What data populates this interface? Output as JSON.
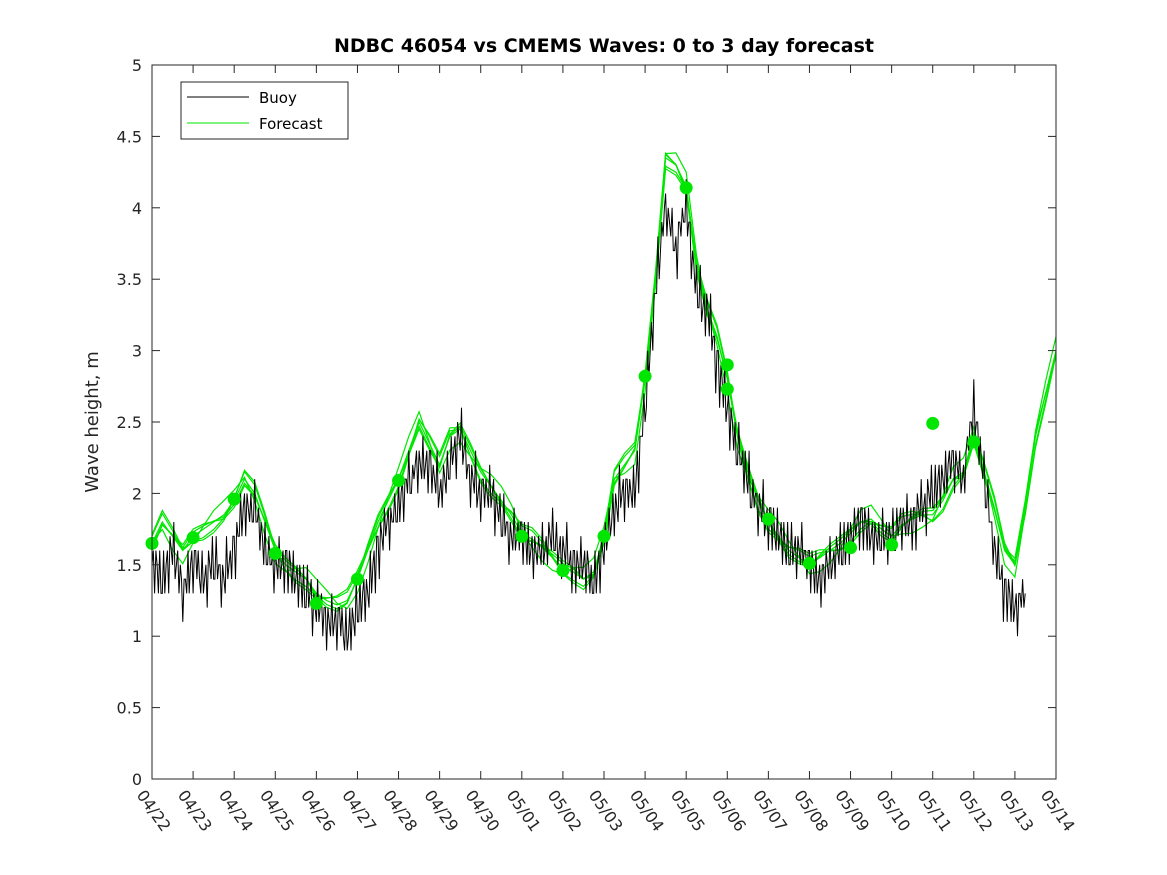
{
  "chart_data": {
    "type": "line",
    "title": "NDBC 46054 vs CMEMS Waves: 0 to 3 day forecast",
    "xlabel": "",
    "ylabel": "Wave height, m",
    "xlim": [
      "04/22",
      "05/14"
    ],
    "ylim": [
      0,
      5
    ],
    "y_ticks": [
      "0",
      "0.5",
      "1",
      "1.5",
      "2",
      "2.5",
      "3",
      "3.5",
      "4",
      "4.5",
      "5"
    ],
    "x_ticks": [
      "04/22",
      "04/23",
      "04/24",
      "04/25",
      "04/26",
      "04/27",
      "04/28",
      "04/29",
      "04/30",
      "05/01",
      "05/02",
      "05/03",
      "05/04",
      "05/05",
      "05/06",
      "05/07",
      "05/08",
      "05/09",
      "05/10",
      "05/11",
      "05/12",
      "05/13",
      "05/14"
    ],
    "grid": false,
    "legend_position": "top-left",
    "colors": {
      "buoy": "#000000",
      "forecast": "#00e600",
      "marker": "#00e600"
    },
    "series": [
      {
        "name": "Buoy",
        "x": [
          "04/22",
          "04/22 06h",
          "04/22 12h",
          "04/22 18h",
          "04/23",
          "04/23 06h",
          "04/23 12h",
          "04/23 18h",
          "04/24",
          "04/24 06h",
          "04/24 12h",
          "04/24 18h",
          "04/25",
          "04/25 06h",
          "04/25 12h",
          "04/25 18h",
          "04/26",
          "04/26 06h",
          "04/26 12h",
          "04/26 18h",
          "04/27",
          "04/27 06h",
          "04/27 12h",
          "04/27 18h",
          "04/28",
          "04/28 06h",
          "04/28 12h",
          "04/28 18h",
          "04/29",
          "04/29 06h",
          "04/29 12h",
          "04/29 18h",
          "04/30",
          "04/30 06h",
          "04/30 12h",
          "04/30 18h",
          "05/01",
          "05/01 06h",
          "05/01 12h",
          "05/01 18h",
          "05/02",
          "05/02 06h",
          "05/02 12h",
          "05/02 18h",
          "05/03",
          "05/03 06h",
          "05/03 12h",
          "05/03 18h",
          "05/04",
          "05/04 06h",
          "05/04 12h",
          "05/04 18h",
          "05/05",
          "05/05 06h",
          "05/05 12h",
          "05/05 18h",
          "05/06",
          "05/06 06h",
          "05/06 12h",
          "05/06 18h",
          "05/07",
          "05/07 06h",
          "05/07 12h",
          "05/07 18h",
          "05/08",
          "05/08 06h",
          "05/08 12h",
          "05/08 18h",
          "05/09",
          "05/09 06h",
          "05/09 12h",
          "05/09 18h",
          "05/10",
          "05/10 06h",
          "05/10 12h",
          "05/10 18h",
          "05/11",
          "05/11 06h",
          "05/11 12h",
          "05/11 18h",
          "05/12",
          "05/12 06h",
          "05/12 12h",
          "05/12 18h",
          "05/13",
          "05/13 06h"
        ],
        "values": [
          1.5,
          1.4,
          1.6,
          1.3,
          1.5,
          1.4,
          1.5,
          1.4,
          1.6,
          1.9,
          1.9,
          1.6,
          1.5,
          1.5,
          1.4,
          1.3,
          1.2,
          1.1,
          1.1,
          1.0,
          1.2,
          1.3,
          1.6,
          1.8,
          1.9,
          2.1,
          2.2,
          2.2,
          2.0,
          2.2,
          2.4,
          2.1,
          2.0,
          2.0,
          1.8,
          1.7,
          1.7,
          1.6,
          1.6,
          1.7,
          1.6,
          1.5,
          1.5,
          1.4,
          1.6,
          1.9,
          2.0,
          2.0,
          2.6,
          3.4,
          4.0,
          3.7,
          4.0,
          3.4,
          3.3,
          2.9,
          2.6,
          2.3,
          2.1,
          1.9,
          1.8,
          1.7,
          1.6,
          1.6,
          1.5,
          1.4,
          1.5,
          1.6,
          1.7,
          1.8,
          1.7,
          1.7,
          1.7,
          1.8,
          1.8,
          1.9,
          2.0,
          2.1,
          2.2,
          2.1,
          2.6,
          2.1,
          1.6,
          1.3,
          1.2,
          1.3
        ]
      },
      {
        "name": "Forecast",
        "x": [
          "04/22",
          "04/22 06h",
          "04/22 12h",
          "04/22 18h",
          "04/23",
          "04/23 06h",
          "04/23 12h",
          "04/23 18h",
          "04/24",
          "04/24 06h",
          "04/24 12h",
          "04/24 18h",
          "04/25",
          "04/25 06h",
          "04/25 12h",
          "04/25 18h",
          "04/26",
          "04/26 06h",
          "04/26 12h",
          "04/26 18h",
          "04/27",
          "04/27 06h",
          "04/27 12h",
          "04/27 18h",
          "04/28",
          "04/28 06h",
          "04/28 12h",
          "04/28 18h",
          "04/29",
          "04/29 06h",
          "04/29 12h",
          "04/29 18h",
          "04/30",
          "04/30 06h",
          "04/30 12h",
          "04/30 18h",
          "05/01",
          "05/01 06h",
          "05/01 12h",
          "05/01 18h",
          "05/02",
          "05/02 06h",
          "05/02 12h",
          "05/02 18h",
          "05/03",
          "05/03 06h",
          "05/03 12h",
          "05/03 18h",
          "05/04",
          "05/04 06h",
          "05/04 12h",
          "05/04 18h",
          "05/05",
          "05/05 06h",
          "05/05 12h",
          "05/05 18h",
          "05/06",
          "05/06 06h",
          "05/06 12h",
          "05/06 18h",
          "05/07",
          "05/07 06h",
          "05/07 12h",
          "05/07 18h",
          "05/08",
          "05/08 06h",
          "05/08 12h",
          "05/08 18h",
          "05/09",
          "05/09 06h",
          "05/09 12h",
          "05/09 18h",
          "05/10",
          "05/10 06h",
          "05/10 12h",
          "05/10 18h",
          "05/11",
          "05/11 06h",
          "05/11 12h",
          "05/11 18h",
          "05/12",
          "05/12 06h",
          "05/12 12h",
          "05/12 18h",
          "05/13",
          "05/13 06h",
          "05/13 12h",
          "05/13 18h",
          "05/14"
        ],
        "values": [
          1.65,
          1.8,
          1.7,
          1.6,
          1.7,
          1.75,
          1.8,
          1.85,
          1.95,
          2.1,
          2.0,
          1.8,
          1.6,
          1.5,
          1.45,
          1.4,
          1.3,
          1.25,
          1.22,
          1.25,
          1.4,
          1.6,
          1.8,
          1.95,
          2.1,
          2.3,
          2.5,
          2.35,
          2.2,
          2.4,
          2.45,
          2.3,
          2.15,
          2.05,
          1.95,
          1.85,
          1.72,
          1.68,
          1.62,
          1.55,
          1.48,
          1.45,
          1.4,
          1.45,
          1.7,
          2.1,
          2.2,
          2.3,
          2.8,
          3.5,
          4.35,
          4.3,
          4.15,
          3.6,
          3.3,
          3.1,
          2.8,
          2.4,
          2.15,
          1.95,
          1.8,
          1.7,
          1.6,
          1.55,
          1.5,
          1.55,
          1.6,
          1.65,
          1.72,
          1.8,
          1.82,
          1.75,
          1.7,
          1.78,
          1.82,
          1.85,
          1.85,
          1.95,
          2.1,
          2.15,
          2.4,
          2.15,
          1.9,
          1.6,
          1.5,
          1.9,
          2.4,
          2.7,
          3.0
        ]
      }
    ],
    "markers": {
      "x": [
        "04/22",
        "04/23",
        "04/24",
        "04/25",
        "04/26",
        "04/27",
        "04/28",
        "05/01",
        "05/02",
        "05/03",
        "05/04",
        "05/05",
        "05/06",
        "05/06",
        "05/07",
        "05/08",
        "05/09",
        "05/10",
        "05/11",
        "05/12"
      ],
      "values": [
        1.65,
        1.69,
        1.96,
        1.58,
        1.23,
        1.4,
        2.09,
        1.7,
        1.46,
        1.7,
        2.82,
        4.14,
        2.9,
        2.73,
        1.82,
        1.51,
        1.62,
        1.64,
        2.49,
        2.36
      ]
    }
  }
}
